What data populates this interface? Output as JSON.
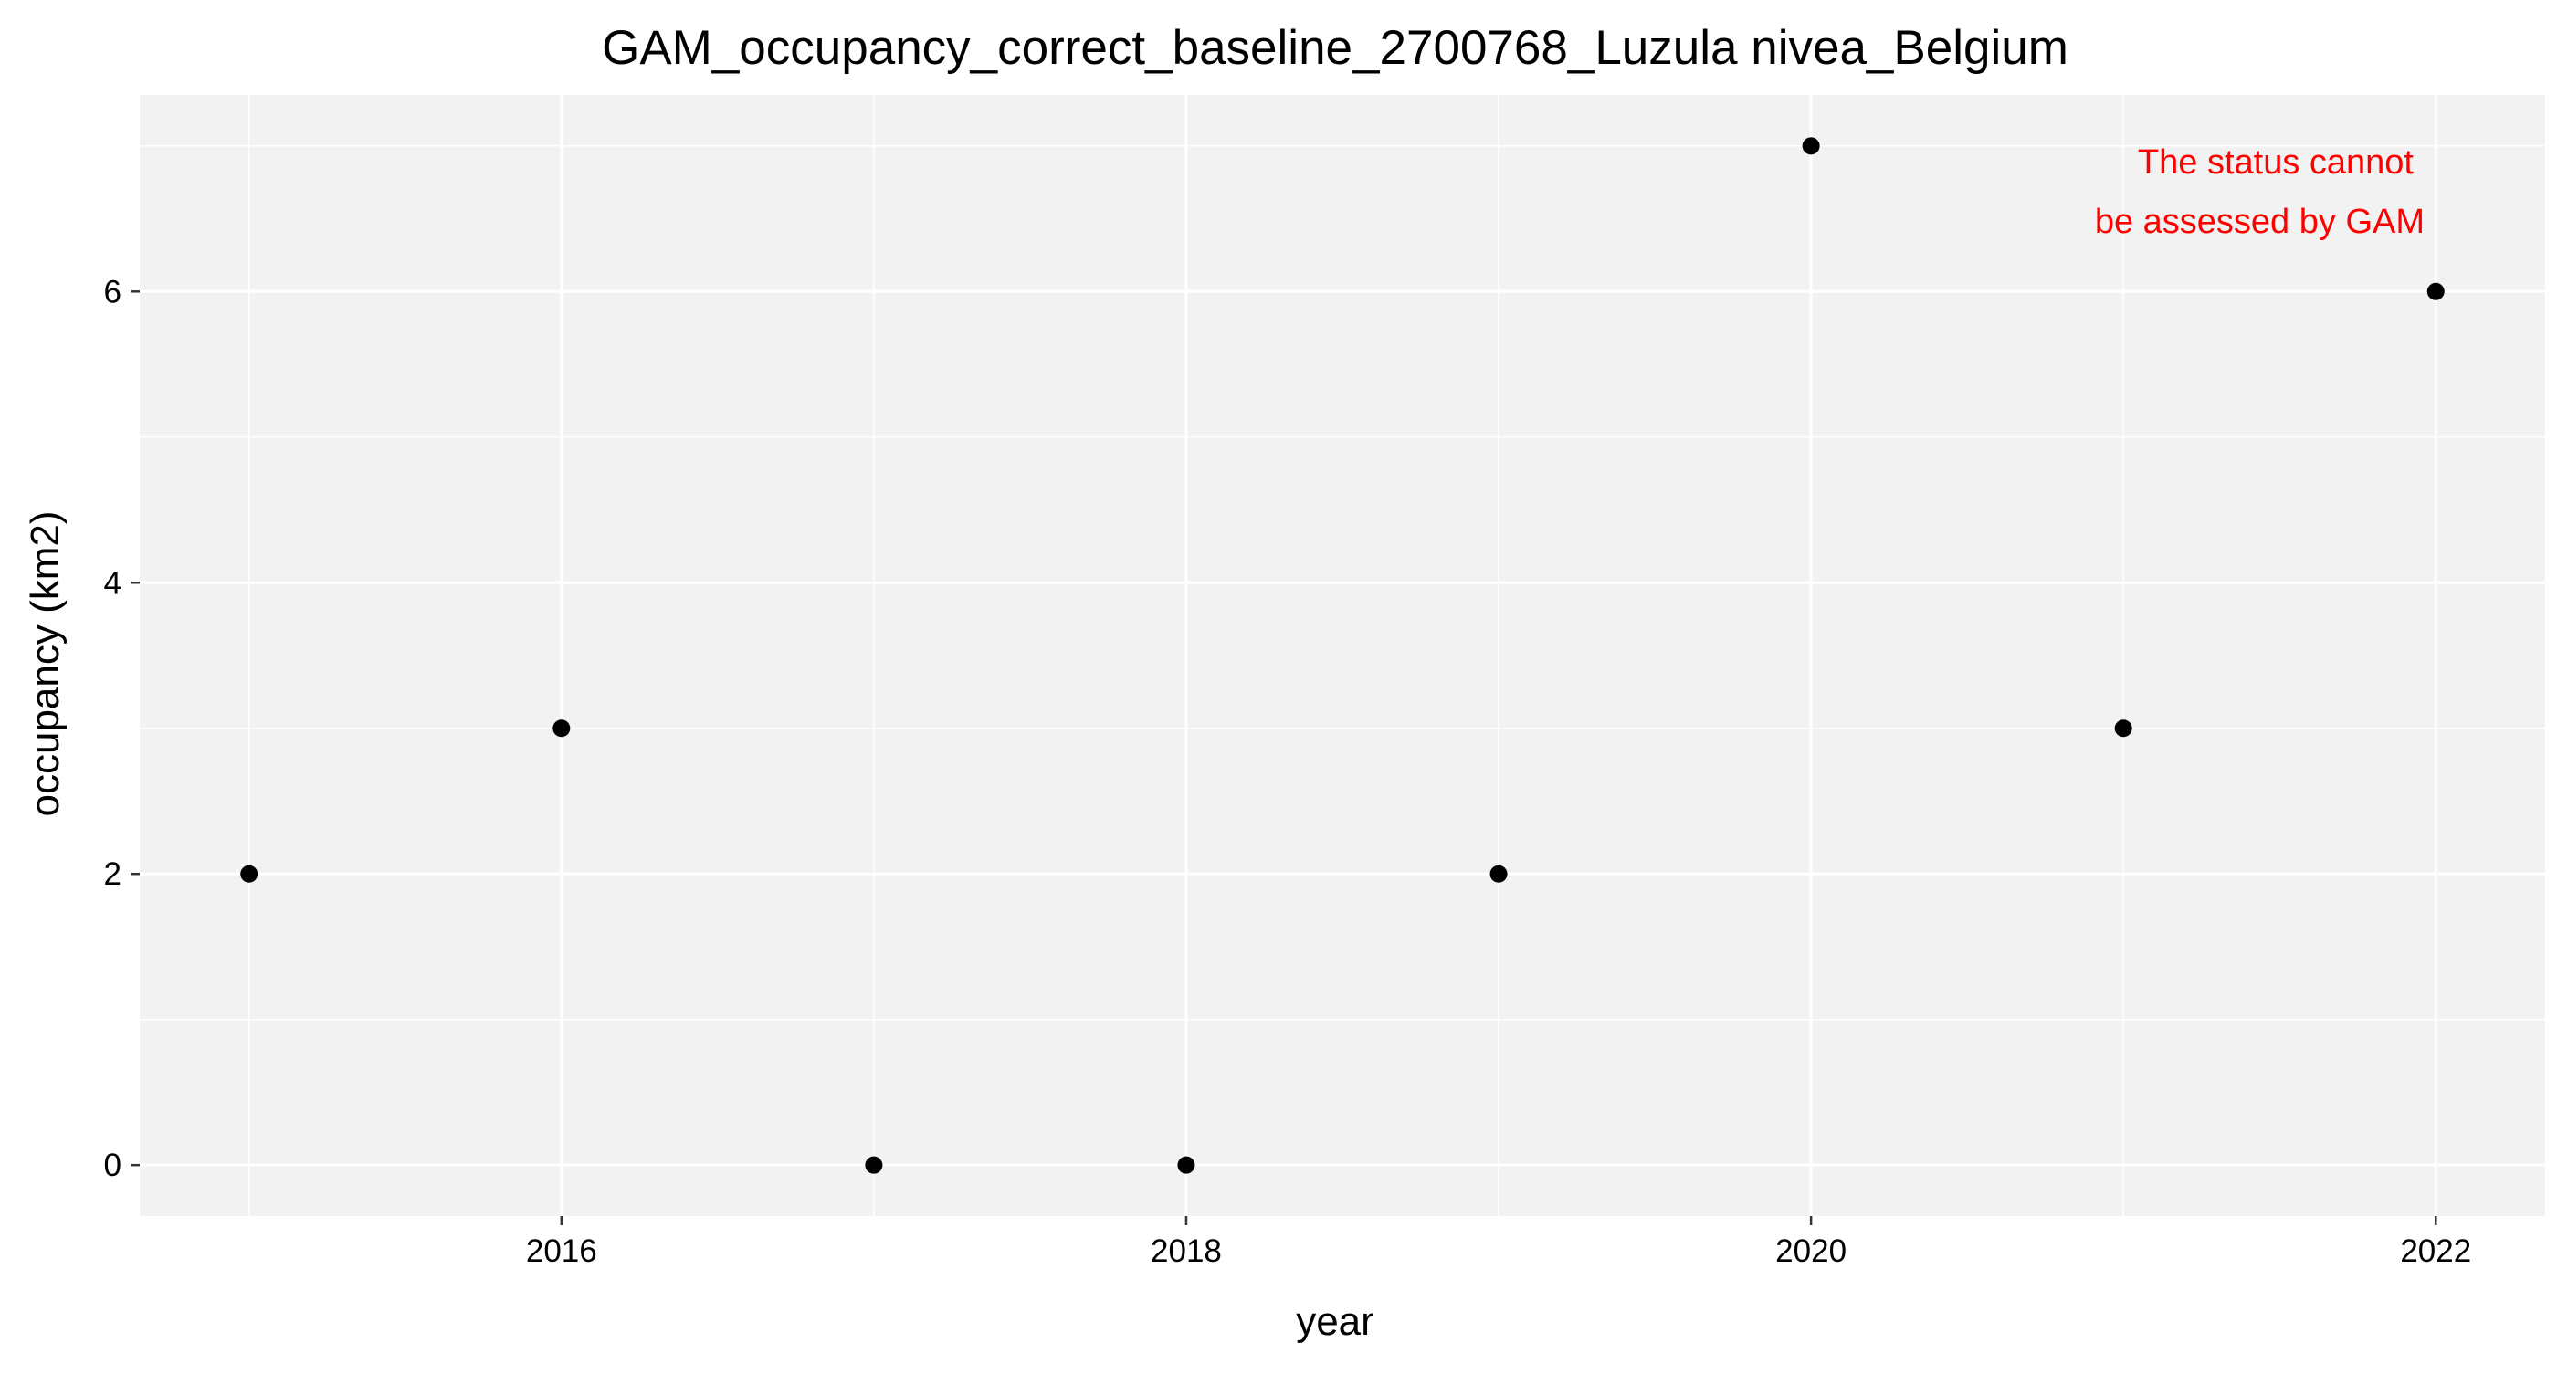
{
  "chart_data": {
    "type": "scatter",
    "title": "GAM_occupancy_correct_baseline_2700768_Luzula nivea_Belgium",
    "xlabel": "year",
    "ylabel": "occupancy (km2)",
    "x": [
      2015,
      2016,
      2017,
      2018,
      2019,
      2020,
      2021,
      2022
    ],
    "series": [
      {
        "values": [
          2,
          3,
          0,
          0,
          2,
          7,
          3,
          6
        ]
      }
    ],
    "xlim": [
      2014.65,
      2022.35
    ],
    "ylim": [
      -0.35,
      7.35
    ],
    "x_ticks": [
      2016,
      2018,
      2020,
      2022
    ],
    "y_ticks": [
      0,
      2,
      4,
      6
    ],
    "x_minor": [
      2015,
      2017,
      2019,
      2021
    ],
    "y_minor": [
      1,
      3,
      5,
      7
    ],
    "grid": true,
    "legend": "none",
    "annotation": {
      "lines": [
        "The status cannot",
        "be assessed by GAM"
      ],
      "color": "#ff0000"
    },
    "colors": {
      "panel": "#f2f2f2",
      "grid": "#ffffff",
      "point": "#000000",
      "text": "#000000"
    }
  }
}
